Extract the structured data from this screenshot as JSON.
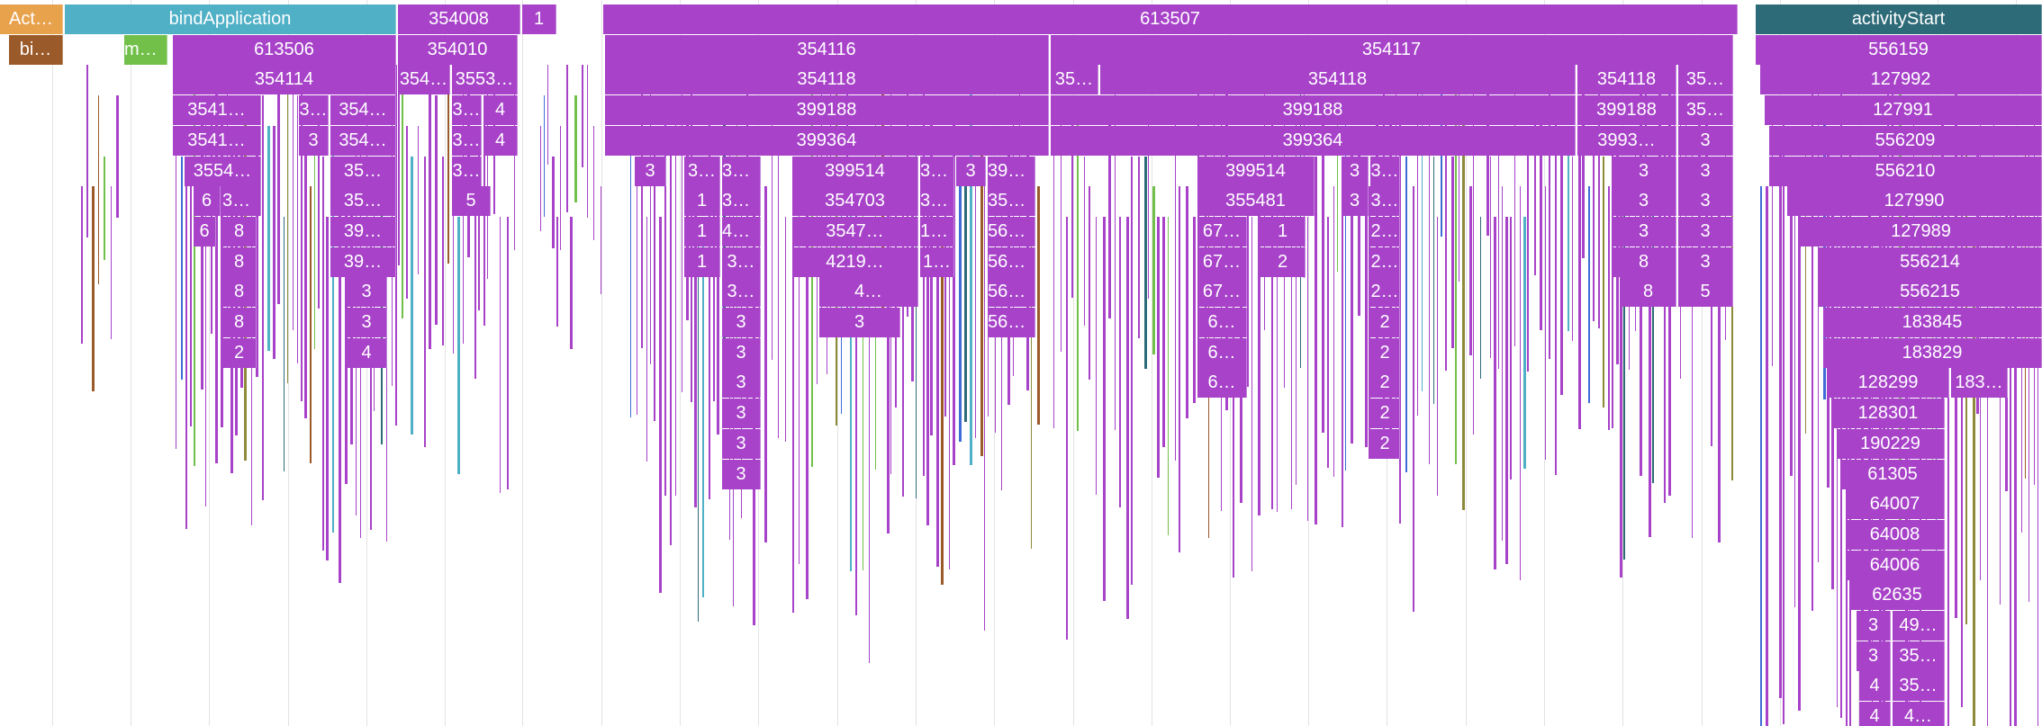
{
  "colors": {
    "purple": "#a742c9",
    "orange": "#e8a24c",
    "brown": "#9b5a2a",
    "cyan": "#4fb0c6",
    "teal": "#2d6b78",
    "green": "#72c04a",
    "olive": "#8d8a3a",
    "blue": "#3f6bd6",
    "grid": "#e3e3e3"
  },
  "rows": [
    [
      [
        "Act…",
        "orange",
        0,
        70
      ],
      [
        "bindApplication",
        "cyan",
        72,
        440
      ],
      [
        "354008",
        "purple",
        442,
        578
      ],
      [
        "1",
        "purple",
        580,
        618
      ],
      [
        "613507",
        "purple",
        670,
        1930
      ],
      [
        "activityStart",
        "teal",
        1950,
        2268
      ]
    ],
    [
      [
        "bi…",
        "brown",
        10,
        70
      ],
      [
        "ma…",
        "green",
        138,
        186
      ],
      [
        "613506",
        "purple",
        192,
        440
      ],
      [
        "354010",
        "purple",
        442,
        575
      ],
      [
        "354116",
        "purple",
        672,
        1165
      ],
      [
        "354117",
        "purple",
        1167,
        1925
      ],
      [
        "556159",
        "purple",
        1950,
        2268
      ]
    ],
    [
      [
        "354114",
        "purple",
        192,
        440
      ],
      [
        "354…",
        "purple",
        442,
        500
      ],
      [
        "3553…",
        "purple",
        502,
        575
      ],
      [
        "354118",
        "purple",
        672,
        1165
      ],
      [
        "35…",
        "purple",
        1167,
        1220
      ],
      [
        "354118",
        "purple",
        1222,
        1750
      ],
      [
        "354118",
        "purple",
        1752,
        1862
      ],
      [
        "35…",
        "purple",
        1864,
        1925
      ],
      [
        "127992",
        "purple",
        1955,
        2268
      ]
    ],
    [
      [
        "3541…",
        "purple",
        192,
        290
      ],
      [
        "3…",
        "purple",
        332,
        365
      ],
      [
        "354…",
        "purple",
        367,
        440
      ],
      [
        "3…",
        "purple",
        502,
        535
      ],
      [
        "4",
        "purple",
        537,
        575
      ],
      [
        "399188",
        "purple",
        672,
        1165
      ],
      [
        "399188",
        "purple",
        1167,
        1750
      ],
      [
        "399188",
        "purple",
        1752,
        1862
      ],
      [
        "35…",
        "purple",
        1864,
        1925
      ],
      [
        "127991",
        "purple",
        1960,
        2268
      ]
    ],
    [
      [
        "3541…",
        "purple",
        192,
        290
      ],
      [
        "3",
        "purple",
        332,
        365
      ],
      [
        "354…",
        "purple",
        367,
        440
      ],
      [
        "3…",
        "purple",
        502,
        535
      ],
      [
        "4",
        "purple",
        537,
        575
      ],
      [
        "399364",
        "purple",
        672,
        1165
      ],
      [
        "399364",
        "purple",
        1167,
        1750
      ],
      [
        "3993…",
        "purple",
        1752,
        1862
      ],
      [
        "3",
        "purple",
        1864,
        1925
      ],
      [
        "556209",
        "purple",
        1965,
        2268
      ]
    ],
    [
      [
        "3554…",
        "purple",
        205,
        290
      ],
      [
        "35…",
        "purple",
        367,
        440
      ],
      [
        "3…",
        "purple",
        502,
        535
      ],
      [
        "3",
        "purple",
        705,
        740
      ],
      [
        "3…",
        "purple",
        760,
        800
      ],
      [
        "39…",
        "purple",
        802,
        845
      ],
      [
        "399514",
        "purple",
        880,
        1020
      ],
      [
        "39…",
        "purple",
        1022,
        1060
      ],
      [
        "3",
        "purple",
        1062,
        1095
      ],
      [
        "399…",
        "purple",
        1097,
        1150
      ],
      [
        "399514",
        "purple",
        1330,
        1460
      ],
      [
        "3",
        "purple",
        1490,
        1520
      ],
      [
        "3…",
        "purple",
        1522,
        1555
      ],
      [
        "3",
        "purple",
        1790,
        1862
      ],
      [
        "3",
        "purple",
        1864,
        1925
      ],
      [
        "556210",
        "purple",
        1965,
        2268
      ]
    ],
    [
      [
        "6",
        "purple",
        215,
        245
      ],
      [
        "35…",
        "purple",
        247,
        290
      ],
      [
        "35…",
        "purple",
        367,
        440
      ],
      [
        "5",
        "purple",
        502,
        545
      ],
      [
        "1",
        "purple",
        760,
        800
      ],
      [
        "35…",
        "purple",
        802,
        845
      ],
      [
        "354703",
        "purple",
        880,
        1020
      ],
      [
        "35…",
        "purple",
        1022,
        1060
      ],
      [
        "354…",
        "purple",
        1097,
        1150
      ],
      [
        "355481",
        "purple",
        1330,
        1460
      ],
      [
        "3",
        "purple",
        1490,
        1520
      ],
      [
        "3…",
        "purple",
        1522,
        1555
      ],
      [
        "3",
        "purple",
        1790,
        1862
      ],
      [
        "3",
        "purple",
        1864,
        1925
      ],
      [
        "127990",
        "purple",
        1985,
        2268
      ]
    ],
    [
      [
        "6",
        "purple",
        215,
        240
      ],
      [
        "8",
        "purple",
        247,
        285
      ],
      [
        "39…",
        "purple",
        367,
        440
      ],
      [
        "1",
        "purple",
        760,
        800
      ],
      [
        "44…",
        "purple",
        802,
        845
      ],
      [
        "3547…",
        "purple",
        880,
        1020
      ],
      [
        "15…",
        "purple",
        1022,
        1060
      ],
      [
        "562…",
        "purple",
        1097,
        1150
      ],
      [
        "67…",
        "purple",
        1330,
        1385
      ],
      [
        "1",
        "purple",
        1400,
        1450
      ],
      [
        "2…",
        "purple",
        1522,
        1555
      ],
      [
        "3",
        "purple",
        1790,
        1862
      ],
      [
        "3",
        "purple",
        1864,
        1925
      ],
      [
        "127989",
        "purple",
        2000,
        2268
      ]
    ],
    [
      [
        "8",
        "purple",
        247,
        285
      ],
      [
        "39…",
        "purple",
        367,
        440
      ],
      [
        "1",
        "purple",
        760,
        800
      ],
      [
        "3…",
        "purple",
        802,
        845
      ],
      [
        "4219…",
        "purple",
        880,
        1020
      ],
      [
        "1…",
        "purple",
        1022,
        1060
      ],
      [
        "562…",
        "purple",
        1097,
        1150
      ],
      [
        "67…",
        "purple",
        1330,
        1385
      ],
      [
        "2",
        "purple",
        1400,
        1450
      ],
      [
        "2…",
        "purple",
        1522,
        1555
      ],
      [
        "8",
        "purple",
        1790,
        1862
      ],
      [
        "3",
        "purple",
        1864,
        1925
      ],
      [
        "556214",
        "purple",
        2020,
        2268
      ]
    ],
    [
      [
        "8",
        "purple",
        247,
        285
      ],
      [
        "3",
        "purple",
        385,
        430
      ],
      [
        "3…",
        "purple",
        802,
        845
      ],
      [
        "4…",
        "purple",
        910,
        1020
      ],
      [
        "562…",
        "purple",
        1097,
        1150
      ],
      [
        "67…",
        "purple",
        1330,
        1385
      ],
      [
        "2…",
        "purple",
        1522,
        1555
      ],
      [
        "8",
        "purple",
        1800,
        1862
      ],
      [
        "5",
        "purple",
        1864,
        1925
      ],
      [
        "556215",
        "purple",
        2020,
        2268
      ]
    ],
    [
      [
        "8",
        "purple",
        247,
        285
      ],
      [
        "3",
        "purple",
        385,
        430
      ],
      [
        "3",
        "purple",
        802,
        845
      ],
      [
        "3",
        "purple",
        910,
        1000
      ],
      [
        "562…",
        "purple",
        1097,
        1150
      ],
      [
        "6…",
        "purple",
        1330,
        1385
      ],
      [
        "2",
        "purple",
        1522,
        1555
      ],
      [
        "183845",
        "purple",
        2025,
        2268
      ]
    ],
    [
      [
        "2",
        "purple",
        247,
        285
      ],
      [
        "4",
        "purple",
        385,
        430
      ],
      [
        "3",
        "purple",
        802,
        845
      ],
      [
        "6…",
        "purple",
        1330,
        1385
      ],
      [
        "2",
        "purple",
        1522,
        1555
      ],
      [
        "183829",
        "purple",
        2025,
        2268
      ]
    ],
    [
      [
        "3",
        "purple",
        802,
        845
      ],
      [
        "6…",
        "purple",
        1330,
        1385
      ],
      [
        "2",
        "purple",
        1522,
        1555
      ],
      [
        "128299",
        "purple",
        2030,
        2165
      ],
      [
        "183…",
        "purple",
        2167,
        2230
      ]
    ],
    [
      [
        "3",
        "purple",
        802,
        845
      ],
      [
        "2",
        "purple",
        1522,
        1555
      ],
      [
        "128301",
        "purple",
        2035,
        2160
      ]
    ],
    [
      [
        "3",
        "purple",
        802,
        845
      ],
      [
        "2",
        "purple",
        1522,
        1555
      ],
      [
        "190229",
        "purple",
        2040,
        2160
      ]
    ],
    [
      [
        "3",
        "purple",
        802,
        845
      ],
      [
        "61305",
        "purple",
        2045,
        2160
      ]
    ],
    [
      [
        "64007",
        "purple",
        2050,
        2160
      ]
    ],
    [
      [
        "64008",
        "purple",
        2050,
        2160
      ]
    ],
    [
      [
        "64006",
        "purple",
        2050,
        2160
      ]
    ],
    [
      [
        "62635",
        "purple",
        2055,
        2160
      ]
    ],
    [
      [
        "3",
        "purple",
        2062,
        2100
      ],
      [
        "49…",
        "purple",
        2102,
        2160
      ]
    ],
    [
      [
        "3",
        "purple",
        2062,
        2100
      ],
      [
        "35…",
        "purple",
        2102,
        2160
      ]
    ],
    [
      [
        "4",
        "purple",
        2065,
        2100
      ],
      [
        "35…",
        "purple",
        2102,
        2160
      ]
    ],
    [
      [
        "4",
        "purple",
        2065,
        2100
      ],
      [
        "4…",
        "purple",
        2102,
        2160
      ]
    ]
  ]
}
